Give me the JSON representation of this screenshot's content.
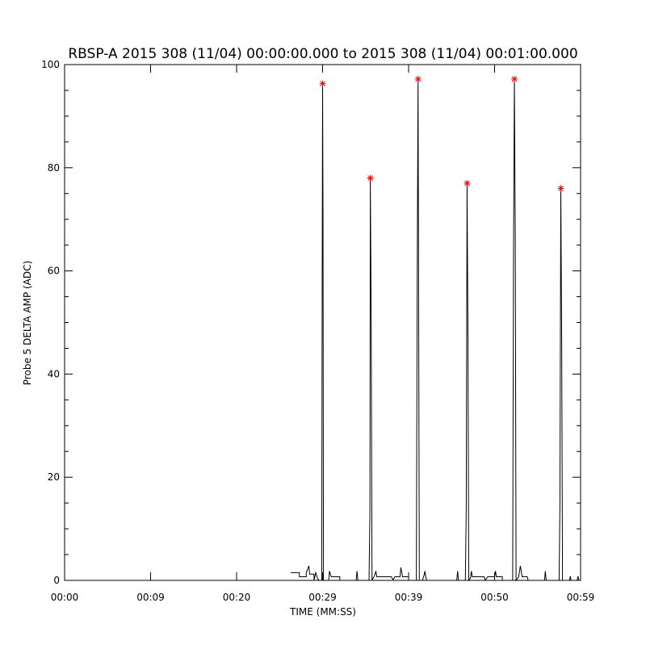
{
  "chart_data": {
    "type": "line",
    "title": "RBSP-A 2015 308 (11/04) 00:00:00.000 to 2015 308 (11/04) 00:01:00.000",
    "xlabel": "TIME (MM:SS)",
    "ylabel": "Probe 5 DELTA AMP (ADC)",
    "xlim": [
      0,
      60
    ],
    "ylim": [
      0,
      100
    ],
    "x_ticks": [
      0,
      10,
      20,
      30,
      40,
      50,
      60
    ],
    "x_tick_labels": [
      "00:00",
      "00:09",
      "00:20",
      "00:29",
      "00:39",
      "00:50",
      "00:59"
    ],
    "y_ticks": [
      0,
      20,
      40,
      60,
      80,
      100
    ],
    "y_tick_labels": [
      "0",
      "20",
      "40",
      "60",
      "80",
      "100"
    ],
    "y_minor_step": 5,
    "grid": false,
    "line_color": "#000000",
    "marker_color": "#ff0000",
    "series": [
      {
        "points": [
          [
            26.3,
            1.5
          ],
          [
            27.3,
            1.5
          ],
          [
            27.3,
            0.7
          ],
          [
            28.1,
            0.7
          ],
          [
            28.1,
            1.5
          ],
          [
            28.4,
            2.8
          ],
          [
            28.5,
            1.2
          ],
          [
            29.0,
            1.2
          ],
          [
            29.0,
            0
          ],
          [
            29.2,
            1.5
          ],
          [
            29.4,
            0.4
          ],
          [
            29.6,
            0
          ],
          [
            29.9,
            0
          ],
          [
            29.95,
            57
          ],
          [
            30.0,
            96.3
          ],
          [
            30.05,
            71
          ],
          [
            30.1,
            0
          ],
          [
            30.7,
            0
          ],
          [
            30.8,
            1.8
          ],
          [
            31.0,
            0.7
          ],
          [
            32.0,
            0.7
          ],
          [
            32.0,
            0
          ],
          [
            33.9,
            0
          ],
          [
            34.0,
            1.8
          ],
          [
            34.1,
            0
          ],
          [
            35.4,
            0
          ],
          [
            35.5,
            13
          ],
          [
            35.55,
            78
          ],
          [
            35.65,
            50
          ],
          [
            35.75,
            0
          ],
          [
            35.9,
            0.5
          ],
          [
            36.0,
            0.8
          ],
          [
            36.2,
            1.8
          ],
          [
            36.3,
            0.7
          ],
          [
            38.0,
            0.7
          ],
          [
            38.2,
            0.1
          ],
          [
            38.4,
            0.7
          ],
          [
            39.0,
            0.7
          ],
          [
            39.1,
            2.5
          ],
          [
            39.3,
            0.7
          ],
          [
            40.0,
            0.7
          ],
          [
            40.0,
            0
          ],
          [
            40.9,
            0
          ],
          [
            41.0,
            59
          ],
          [
            41.1,
            97.2
          ],
          [
            41.15,
            69
          ],
          [
            41.25,
            0
          ],
          [
            41.6,
            0
          ],
          [
            41.8,
            1
          ],
          [
            41.9,
            1.8
          ],
          [
            42.0,
            0.7
          ],
          [
            42.1,
            0
          ],
          [
            45.6,
            0
          ],
          [
            45.7,
            1.8
          ],
          [
            45.8,
            0
          ],
          [
            46.6,
            0
          ],
          [
            46.7,
            14
          ],
          [
            46.8,
            77
          ],
          [
            46.9,
            48
          ],
          [
            47.0,
            0
          ],
          [
            47.2,
            0.5
          ],
          [
            47.3,
            1.8
          ],
          [
            47.4,
            0.7
          ],
          [
            48.8,
            0.7
          ],
          [
            48.9,
            0
          ],
          [
            49.2,
            0.7
          ],
          [
            50.0,
            0.7
          ],
          [
            50.1,
            1.8
          ],
          [
            50.2,
            0.7
          ],
          [
            50.9,
            0.7
          ],
          [
            50.9,
            0
          ],
          [
            52.1,
            0
          ],
          [
            52.2,
            61
          ],
          [
            52.3,
            97.2
          ],
          [
            52.4,
            67
          ],
          [
            52.5,
            0
          ],
          [
            52.8,
            0.7
          ],
          [
            53.0,
            2.8
          ],
          [
            53.2,
            0.7
          ],
          [
            53.8,
            0.7
          ],
          [
            53.9,
            0
          ],
          [
            55.8,
            0
          ],
          [
            55.9,
            1.8
          ],
          [
            56.0,
            0
          ],
          [
            57.5,
            0
          ],
          [
            57.6,
            15
          ],
          [
            57.7,
            76
          ],
          [
            57.8,
            46
          ],
          [
            57.9,
            0
          ],
          [
            58.7,
            0
          ],
          [
            58.8,
            0.8
          ],
          [
            58.9,
            0
          ],
          [
            59.6,
            0
          ],
          [
            59.7,
            0.8
          ],
          [
            59.8,
            0
          ]
        ]
      }
    ],
    "markers": [
      [
        30.0,
        96.3
      ],
      [
        35.55,
        78
      ],
      [
        41.1,
        97.2
      ],
      [
        46.8,
        77
      ],
      [
        52.3,
        97.2
      ],
      [
        57.7,
        76
      ]
    ]
  }
}
